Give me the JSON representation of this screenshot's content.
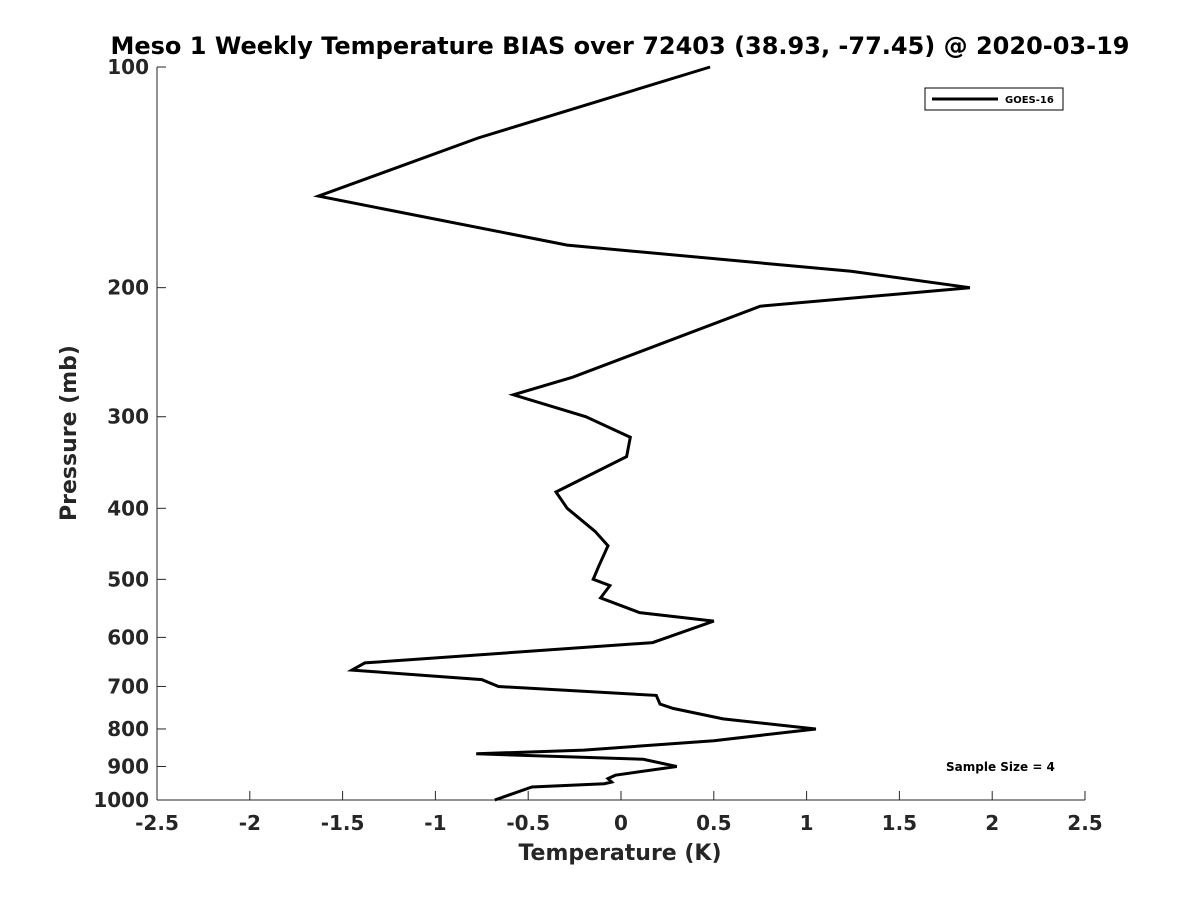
{
  "chart_data": {
    "type": "line",
    "title": "Meso 1 Weekly Temperature BIAS over 72403 (38.93, -77.45) @ 2020-03-19",
    "xlabel": "Temperature (K)",
    "ylabel": "Pressure (mb)",
    "xlim": [
      -2.5,
      2.5
    ],
    "ylim": [
      100,
      1000
    ],
    "yscale": "log",
    "yreversed": true,
    "xticks": [
      -2.5,
      -2,
      -1.5,
      -1,
      -0.5,
      0,
      0.5,
      1,
      1.5,
      2,
      2.5
    ],
    "xtick_labels": [
      "-2.5",
      "-2",
      "-1.5",
      "-1",
      "-0.5",
      "0",
      "0.5",
      "1",
      "1.5",
      "2",
      "2.5"
    ],
    "yticks": [
      100,
      200,
      300,
      400,
      500,
      600,
      700,
      800,
      900,
      1000
    ],
    "ytick_labels": [
      "100",
      "200",
      "300",
      "400",
      "500",
      "600",
      "700",
      "800",
      "900",
      "1000"
    ],
    "grid": false,
    "legend_position": "top-right",
    "annotation": "Sample Size = 4",
    "series": [
      {
        "name": "GOES-16",
        "color": "#000000",
        "points": [
          [
            0.48,
            100
          ],
          [
            -0.77,
            125
          ],
          [
            -1.63,
            150
          ],
          [
            -0.29,
            175
          ],
          [
            1.24,
            190
          ],
          [
            1.88,
            200
          ],
          [
            0.75,
            212
          ],
          [
            -0.26,
            265
          ],
          [
            -0.58,
            280
          ],
          [
            -0.19,
            300
          ],
          [
            0.05,
            320
          ],
          [
            0.03,
            340
          ],
          [
            -0.35,
            380
          ],
          [
            -0.29,
            400
          ],
          [
            -0.14,
            430
          ],
          [
            -0.07,
            450
          ],
          [
            -0.12,
            480
          ],
          [
            -0.15,
            500
          ],
          [
            -0.06,
            510
          ],
          [
            -0.11,
            530
          ],
          [
            0.1,
            555
          ],
          [
            0.5,
            570
          ],
          [
            0.17,
            610
          ],
          [
            -1.38,
            650
          ],
          [
            -1.45,
            665
          ],
          [
            -0.75,
            685
          ],
          [
            -0.66,
            700
          ],
          [
            0.19,
            720
          ],
          [
            0.21,
            740
          ],
          [
            0.28,
            750
          ],
          [
            0.55,
            775
          ],
          [
            1.05,
            800
          ],
          [
            0.5,
            830
          ],
          [
            -0.2,
            855
          ],
          [
            -0.78,
            865
          ],
          [
            0.12,
            880
          ],
          [
            0.3,
            900
          ],
          [
            -0.03,
            925
          ],
          [
            -0.07,
            935
          ],
          [
            -0.05,
            945
          ],
          [
            -0.09,
            950
          ],
          [
            -0.48,
            960
          ],
          [
            -0.68,
            1000
          ]
        ]
      }
    ]
  }
}
